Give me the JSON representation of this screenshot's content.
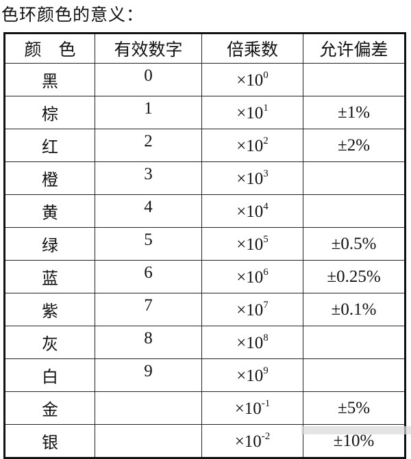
{
  "title": "色环颜色的意义：",
  "table": {
    "headers": [
      "颜　色",
      "有效数字",
      "倍乘数",
      "允许偏差"
    ],
    "rows": [
      {
        "color": "黑",
        "digit": "0",
        "mult_base": "×10",
        "mult_exp": "0",
        "tol": ""
      },
      {
        "color": "棕",
        "digit": "1",
        "mult_base": "×10",
        "mult_exp": "1",
        "tol": "±1%"
      },
      {
        "color": "红",
        "digit": "2",
        "mult_base": "×10",
        "mult_exp": "2",
        "tol": "±2%"
      },
      {
        "color": "橙",
        "digit": "3",
        "mult_base": "×10",
        "mult_exp": "3",
        "tol": ""
      },
      {
        "color": "黄",
        "digit": "4",
        "mult_base": "×10",
        "mult_exp": "4",
        "tol": ""
      },
      {
        "color": "绿",
        "digit": "5",
        "mult_base": "×10",
        "mult_exp": "5",
        "tol": "±0.5%"
      },
      {
        "color": "蓝",
        "digit": "6",
        "mult_base": "×10",
        "mult_exp": "6",
        "tol": "±0.25%"
      },
      {
        "color": "紫",
        "digit": "7",
        "mult_base": "×10",
        "mult_exp": "7",
        "tol": "±0.1%"
      },
      {
        "color": "灰",
        "digit": "8",
        "mult_base": "×10",
        "mult_exp": "8",
        "tol": ""
      },
      {
        "color": "白",
        "digit": "9",
        "mult_base": "×10",
        "mult_exp": "9",
        "tol": ""
      },
      {
        "color": "金",
        "digit": "",
        "mult_base": "×10",
        "mult_exp": "-1",
        "tol": "±5%"
      },
      {
        "color": "银",
        "digit": "",
        "mult_base": "×10",
        "mult_exp": "-2",
        "tol": "±10%"
      }
    ]
  }
}
